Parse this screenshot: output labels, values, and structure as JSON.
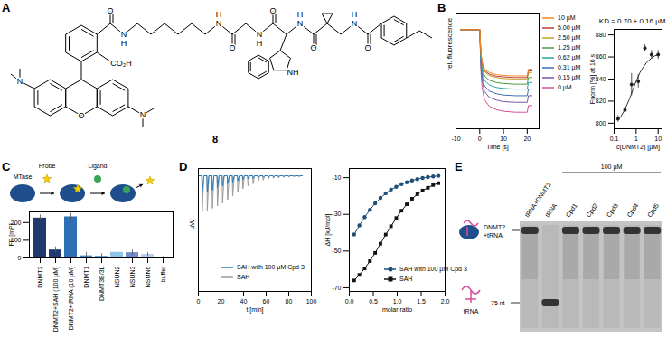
{
  "panels": [
    "A",
    "B",
    "C",
    "D",
    "E"
  ],
  "structure": {
    "label": "8",
    "atoms": [
      "N",
      "O",
      "N",
      "CO₂H",
      "O",
      "N",
      "H",
      "N",
      "H",
      "O",
      "N",
      "H",
      "O",
      "NH",
      "N",
      "H",
      "O",
      "N",
      "H",
      "O"
    ]
  },
  "schematic": {
    "labels": [
      "MTase",
      "Probe",
      "Ligand"
    ]
  },
  "gel": {
    "lanes": [
      "tRNA+DNMT2",
      "tRNA",
      "Cpd1",
      "Cpd2",
      "Cpd3",
      "Cpd4",
      "Cpd5"
    ],
    "concentration": "100 µM",
    "complex_label": [
      "DNMT2",
      "+tRNA"
    ],
    "free_label": "tRNA",
    "marker": "75 nt"
  },
  "chart_data": [
    {
      "type": "line",
      "x_label": "Time [s]",
      "y_label": "rel. fluorescence",
      "x": [
        -8,
        -4,
        0,
        0.5,
        1,
        2,
        4,
        7,
        10,
        15,
        20,
        20.5,
        22
      ],
      "xlim": [
        -10,
        25
      ],
      "xticks": [
        -10,
        0,
        10,
        20
      ],
      "ylim": [
        0.7,
        1.05
      ],
      "tick_labels": "x",
      "legend": "right",
      "series": [
        {
          "name": "10 µM",
          "color": "#f08a24",
          "values": [
            1,
            1,
            1,
            0.93,
            0.902,
            0.881,
            0.87,
            0.864,
            0.861,
            0.86,
            0.86,
            0.88,
            0.88
          ]
        },
        {
          "name": "5.00 µM",
          "color": "#b5423c",
          "values": [
            1,
            1,
            1,
            0.928,
            0.899,
            0.877,
            0.865,
            0.859,
            0.857,
            0.855,
            0.855,
            0.875,
            0.875
          ]
        },
        {
          "name": "2.50 µM",
          "color": "#c9a227",
          "values": [
            1,
            1,
            1,
            0.925,
            0.895,
            0.873,
            0.861,
            0.855,
            0.852,
            0.85,
            0.85,
            0.87,
            0.87
          ]
        },
        {
          "name": "1.25 µM",
          "color": "#4f9a45",
          "values": [
            1,
            1,
            1,
            0.918,
            0.885,
            0.86,
            0.847,
            0.84,
            0.837,
            0.835,
            0.835,
            0.855,
            0.855
          ]
        },
        {
          "name": "0.62 µM",
          "color": "#2aa3a3",
          "values": [
            1,
            1,
            1,
            0.91,
            0.874,
            0.847,
            0.833,
            0.825,
            0.822,
            0.82,
            0.82,
            0.84,
            0.84
          ]
        },
        {
          "name": "0.31 µM",
          "color": "#3f6fb0",
          "values": [
            1,
            1,
            1,
            0.9,
            0.86,
            0.83,
            0.814,
            0.806,
            0.802,
            0.8,
            0.8,
            0.82,
            0.82
          ]
        },
        {
          "name": "0.15 µM",
          "color": "#7a55a8",
          "values": [
            1,
            1,
            1,
            0.89,
            0.846,
            0.813,
            0.795,
            0.787,
            0.782,
            0.78,
            0.78,
            0.8,
            0.8
          ]
        },
        {
          "name": "0 µM",
          "color": "#d0509a",
          "values": [
            1,
            1,
            1,
            0.875,
            0.825,
            0.788,
            0.768,
            0.758,
            0.753,
            0.75,
            0.75,
            0.77,
            0.77
          ]
        }
      ]
    },
    {
      "type": "scatter",
      "annotation": "KD = 0.70 ± 0.16 µM",
      "x_label": "c(DNMT2) [µM]",
      "y_label": "Fnorm [%] at 10 s",
      "log": "x",
      "x": [
        0.15,
        0.31,
        0.62,
        1.25,
        2.5,
        5,
        10
      ],
      "values": [
        804,
        812,
        835,
        838,
        868,
        862,
        862
      ],
      "errors": [
        3,
        8,
        10,
        6,
        3,
        4,
        4
      ],
      "fit": {
        "x": [
          0.15,
          0.2,
          0.3,
          0.5,
          0.7,
          1,
          1.5,
          2,
          3,
          5,
          7,
          10
        ],
        "values": [
          803,
          806,
          812,
          822,
          830,
          838,
          846,
          850,
          855,
          859,
          861,
          862
        ]
      },
      "color": "#222222",
      "xlim": [
        0.1,
        15
      ],
      "xticks": [
        0.1,
        1,
        10
      ],
      "ylim": [
        795,
        885
      ],
      "yticks": [
        800,
        820,
        840,
        860,
        880
      ]
    },
    {
      "type": "bar",
      "y_label": "FP [mP]",
      "categories": [
        "DNMT2",
        "DNMT2+SAH (100 µM)",
        "DNMT2+tRNA (10 µM)",
        "DNMT1",
        "DNMT3B/3L",
        "NSUN2",
        "NSUN3",
        "NSUN6",
        "buffer"
      ],
      "values": [
        225,
        45,
        232,
        12,
        10,
        32,
        30,
        20,
        5
      ],
      "errors": [
        18,
        18,
        20,
        20,
        15,
        15,
        15,
        12,
        3
      ],
      "colors": [
        "#1f3a6e",
        "#1f3a6e",
        "#2e6fb5",
        "#2f8fc9",
        "#5aa9dc",
        "#8fc4ea",
        "#6e8fcf",
        "#b9cdee",
        "#d3dbe8"
      ],
      "ylim": [
        0,
        260
      ],
      "yticks": [
        0,
        100,
        200
      ]
    },
    {
      "type": "line",
      "x_label": "t [min]",
      "y_label": "µW",
      "x": [
        0,
        3,
        3.4,
        4.8,
        7.5,
        7.9,
        9.3,
        12,
        12.4,
        13.8,
        16.5,
        16.9,
        18.3,
        21,
        21.4,
        22.8,
        25.5,
        25.9,
        27.3,
        30,
        30.4,
        31.8,
        34.5,
        34.9,
        36.3,
        39,
        39.4,
        40.8,
        43.5,
        43.9,
        45.3,
        48,
        48.4,
        49.8,
        52.5,
        52.9,
        54.3,
        57,
        57.4,
        58.8,
        61.5,
        61.9,
        63.3,
        66,
        66.4,
        67.8,
        70.5,
        70.9,
        72.3,
        75,
        75.4,
        76.8,
        79.5,
        79.9,
        81.3,
        84,
        84.4,
        85.8,
        88.5,
        88.9,
        90.3,
        92
      ],
      "xlim": [
        0,
        100
      ],
      "xticks": [
        0,
        20,
        40,
        60,
        80,
        100
      ],
      "ylim": [
        -16,
        1
      ],
      "tick_labels": "x",
      "legend": "bottom-right",
      "series": [
        {
          "name": "SAH with 100 µM Cpd 3",
          "color": "#2b7bb9",
          "values": [
            0,
            0,
            -2.5,
            0,
            0,
            -2.3,
            0,
            0,
            -2.0,
            0,
            0,
            -1.7,
            0,
            0,
            -1.4,
            0,
            0,
            -1.1,
            0,
            0,
            -0.9,
            0,
            0,
            -0.7,
            0,
            0,
            -0.55,
            0,
            0,
            -0.45,
            0,
            0,
            -0.35,
            0,
            0,
            -0.28,
            0,
            0,
            -0.22,
            0,
            0,
            -0.18,
            0,
            0,
            -0.15,
            0,
            0,
            -0.12,
            0,
            0,
            -0.1,
            0,
            0,
            -0.08,
            0,
            0,
            -0.07,
            0,
            0,
            -0.06,
            0,
            0
          ]
        },
        {
          "name": "SAH",
          "color": "#9a9a9a",
          "values": [
            0,
            0,
            -5,
            0,
            0,
            -4.8,
            0,
            0,
            -4.5,
            0,
            0,
            -4.2,
            0,
            0,
            -3.8,
            0,
            0,
            -3.3,
            0,
            0,
            -2.8,
            0,
            0,
            -2.3,
            0,
            0,
            -1.8,
            0,
            0,
            -1.4,
            0,
            0,
            -1.1,
            0,
            0,
            -0.8,
            0,
            0,
            -0.6,
            0,
            0,
            -0.45,
            0,
            0,
            -0.35,
            0,
            0,
            -0.28,
            0,
            0,
            -0.22,
            0,
            0,
            -0.18,
            0,
            0,
            -0.15,
            0,
            0,
            -0.12,
            0,
            0
          ]
        }
      ]
    },
    {
      "type": "line",
      "x_label": "molar ratio",
      "y_label": "ΔH [kJ/mol]",
      "x": [
        0.1,
        0.21,
        0.32,
        0.43,
        0.54,
        0.65,
        0.76,
        0.87,
        0.98,
        1.09,
        1.2,
        1.31,
        1.42,
        1.53,
        1.64,
        1.75,
        1.86
      ],
      "xlim": [
        0,
        2
      ],
      "xticks": [
        {
          "value": 0,
          "label": "0.0"
        },
        {
          "value": 0.5,
          "label": "0.5"
        },
        {
          "value": 1,
          "label": "1.0"
        },
        {
          "value": 1.5,
          "label": "1.5"
        },
        {
          "value": 2,
          "label": "2.0"
        }
      ],
      "ylim": [
        -72,
        -5
      ],
      "yticks": [
        -70,
        -50,
        -30,
        -10
      ],
      "legend": "bottom-right",
      "series": [
        {
          "name": "SAH with 100 µM Cpd 3",
          "color": "#1f4e79",
          "marker": "circle",
          "values": [
            -41,
            -36,
            -31.5,
            -27.5,
            -24,
            -21,
            -18.5,
            -16.5,
            -15,
            -13.5,
            -12.5,
            -11.5,
            -10.8,
            -10.2,
            -9.7,
            -9.3,
            -9
          ]
        },
        {
          "name": "SAH",
          "color": "#111111",
          "marker": "square",
          "values": [
            -66,
            -63,
            -59.5,
            -55.5,
            -51,
            -46,
            -41,
            -36.5,
            -32,
            -28,
            -24.5,
            -21.5,
            -19,
            -17,
            -15.5,
            -14,
            -13
          ]
        }
      ]
    }
  ]
}
